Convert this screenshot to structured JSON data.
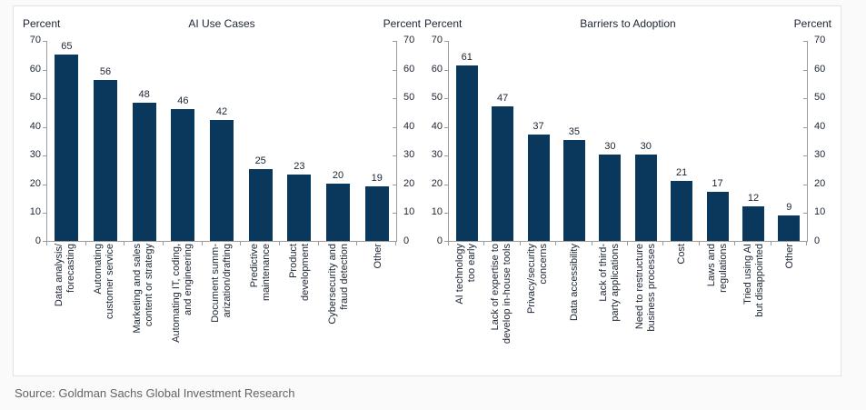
{
  "page": {
    "source": "Source: Goldman Sachs Global Investment Research"
  },
  "axis": {
    "unit_label": "Percent",
    "min": 0,
    "max": 70,
    "step": 10
  },
  "colors": {
    "bar": "#0a385c",
    "axis_line": "#9b9b9b",
    "text": "#1b2433",
    "source_text": "#5f6368",
    "panel_border": "#e2e2e2",
    "panel_bg": "#ffffff"
  },
  "chart_data": [
    {
      "type": "bar",
      "title": "AI Use Cases",
      "ylabel": "Percent",
      "ylim": [
        0,
        70
      ],
      "yticks": [
        0,
        10,
        20,
        30,
        40,
        50,
        60,
        70
      ],
      "grid": false,
      "value_labels": true,
      "bar_color": "#0a385c",
      "categories": [
        "Data analysis/\nforecasting",
        "Automating\ncustomer service",
        "Marketing and sales\ncontent or strategy",
        "Automating IT, coding,\nand engineering",
        "Document summ-\narization/drafting",
        "Predictive\nmaintenance",
        "Product\ndevelopment",
        "Cybersecurity and\nfraud detection",
        "Other"
      ],
      "values": [
        65,
        56,
        48,
        46,
        42,
        25,
        23,
        20,
        19
      ]
    },
    {
      "type": "bar",
      "title": "Barriers to Adoption",
      "ylabel": "Percent",
      "ylim": [
        0,
        70
      ],
      "yticks": [
        0,
        10,
        20,
        30,
        40,
        50,
        60,
        70
      ],
      "grid": false,
      "value_labels": true,
      "bar_color": "#0a385c",
      "categories": [
        "AI technology\ntoo early",
        "Lack of expertise to\ndevelop in-house tools",
        "Privacy/security\nconcerns",
        "Data accessibility",
        "Lack of third-\nparty applications",
        "Need to restructure\nbusiness processes",
        "Cost",
        "Laws and\nregulations",
        "Tried using AI\nbut disappointed",
        "Other"
      ],
      "values": [
        61,
        47,
        37,
        35,
        30,
        30,
        21,
        17,
        12,
        9
      ]
    }
  ]
}
